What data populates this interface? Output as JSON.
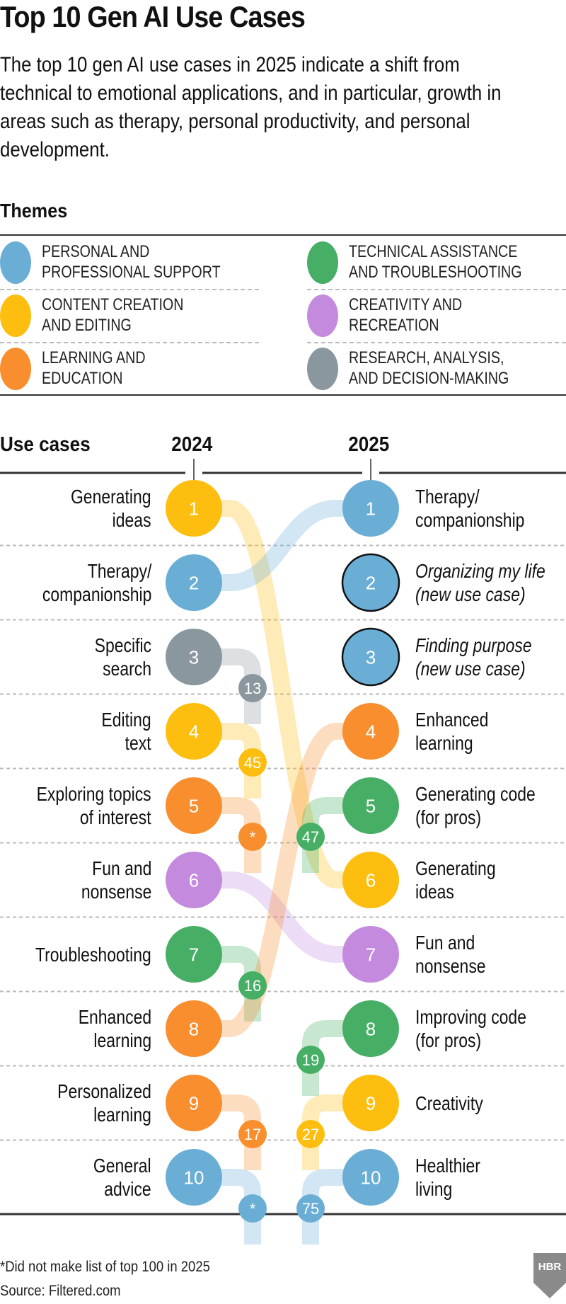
{
  "title": "Top 10 Gen AI Use Cases",
  "subtitle": "The top 10 gen AI use cases in 2025 indicate a shift from technical to emotional applications, and in particular, growth in areas such as therapy, personal productivity, and personal development.",
  "themes_heading": "Themes",
  "themes": [
    {
      "key": "personal",
      "label": "PERSONAL AND\nPROFESSIONAL SUPPORT",
      "color": "#6AAED6"
    },
    {
      "key": "technical",
      "label": "TECHNICAL ASSISTANCE\nAND TROUBLESHOOTING",
      "color": "#46AE65"
    },
    {
      "key": "content",
      "label": "CONTENT CREATION\nAND EDITING",
      "color": "#FDBE10"
    },
    {
      "key": "creativity",
      "label": "CREATIVITY AND\nRECREATION",
      "color": "#C48ADE"
    },
    {
      "key": "learning",
      "label": "LEARNING AND\nEDUCATION",
      "color": "#F98E2E"
    },
    {
      "key": "research",
      "label": "RESEARCH, ANALYSIS,\nAND DECISION-MAKING",
      "color": "#8A979E"
    }
  ],
  "use_cases_heading": "Use cases",
  "year_left": "2024",
  "year_right": "2025",
  "chart_data": {
    "type": "slope",
    "rank_2024": [
      {
        "rank": 1,
        "label": "Generating\nideas",
        "theme": "content",
        "rank_2025": 6
      },
      {
        "rank": 2,
        "label": "Therapy/\ncompanionship",
        "theme": "personal",
        "rank_2025": 1
      },
      {
        "rank": 3,
        "label": "Specific\nsearch",
        "theme": "research",
        "rank_2025": "13"
      },
      {
        "rank": 4,
        "label": "Editing\ntext",
        "theme": "content",
        "rank_2025": "45"
      },
      {
        "rank": 5,
        "label": "Exploring topics\nof interest",
        "theme": "learning",
        "rank_2025": "*"
      },
      {
        "rank": 6,
        "label": "Fun and\nnonsense",
        "theme": "creativity",
        "rank_2025": 7
      },
      {
        "rank": 7,
        "label": "Troubleshooting",
        "theme": "technical",
        "rank_2025": "16"
      },
      {
        "rank": 8,
        "label": "Enhanced\nlearning",
        "theme": "learning",
        "rank_2025": 4
      },
      {
        "rank": 9,
        "label": "Personalized\nlearning",
        "theme": "learning",
        "rank_2025": "17"
      },
      {
        "rank": 10,
        "label": "General\nadvice",
        "theme": "personal",
        "rank_2025": "*"
      }
    ],
    "rank_2025": [
      {
        "rank": 1,
        "label": "Therapy/\ncompanionship",
        "theme": "personal",
        "new": false,
        "rank_2024": 2
      },
      {
        "rank": 2,
        "label": "Organizing my life\n(new use case)",
        "theme": "personal",
        "new": true
      },
      {
        "rank": 3,
        "label": "Finding purpose\n(new use case)",
        "theme": "personal",
        "new": true
      },
      {
        "rank": 4,
        "label": "Enhanced\nlearning",
        "theme": "learning",
        "new": false,
        "rank_2024": 8
      },
      {
        "rank": 5,
        "label": "Generating code\n(for pros)",
        "theme": "technical",
        "new": false,
        "rank_2024": "47"
      },
      {
        "rank": 6,
        "label": "Generating\nideas",
        "theme": "content",
        "new": false,
        "rank_2024": 1
      },
      {
        "rank": 7,
        "label": "Fun and\nnonsense",
        "theme": "creativity",
        "new": false,
        "rank_2024": 6
      },
      {
        "rank": 8,
        "label": "Improving code\n(for pros)",
        "theme": "technical",
        "new": false,
        "rank_2024": "19"
      },
      {
        "rank": 9,
        "label": "Creativity",
        "theme": "content",
        "new": false,
        "rank_2024": "27"
      },
      {
        "rank": 10,
        "label": "Healthier\nliving",
        "theme": "personal",
        "new": false,
        "rank_2024": "75"
      }
    ]
  },
  "footnote": "*Did not make list of top 100 in 2025",
  "source": "Source: Filtered.com",
  "logo": {
    "text": "HBR",
    "color": "#8A8A8A"
  }
}
